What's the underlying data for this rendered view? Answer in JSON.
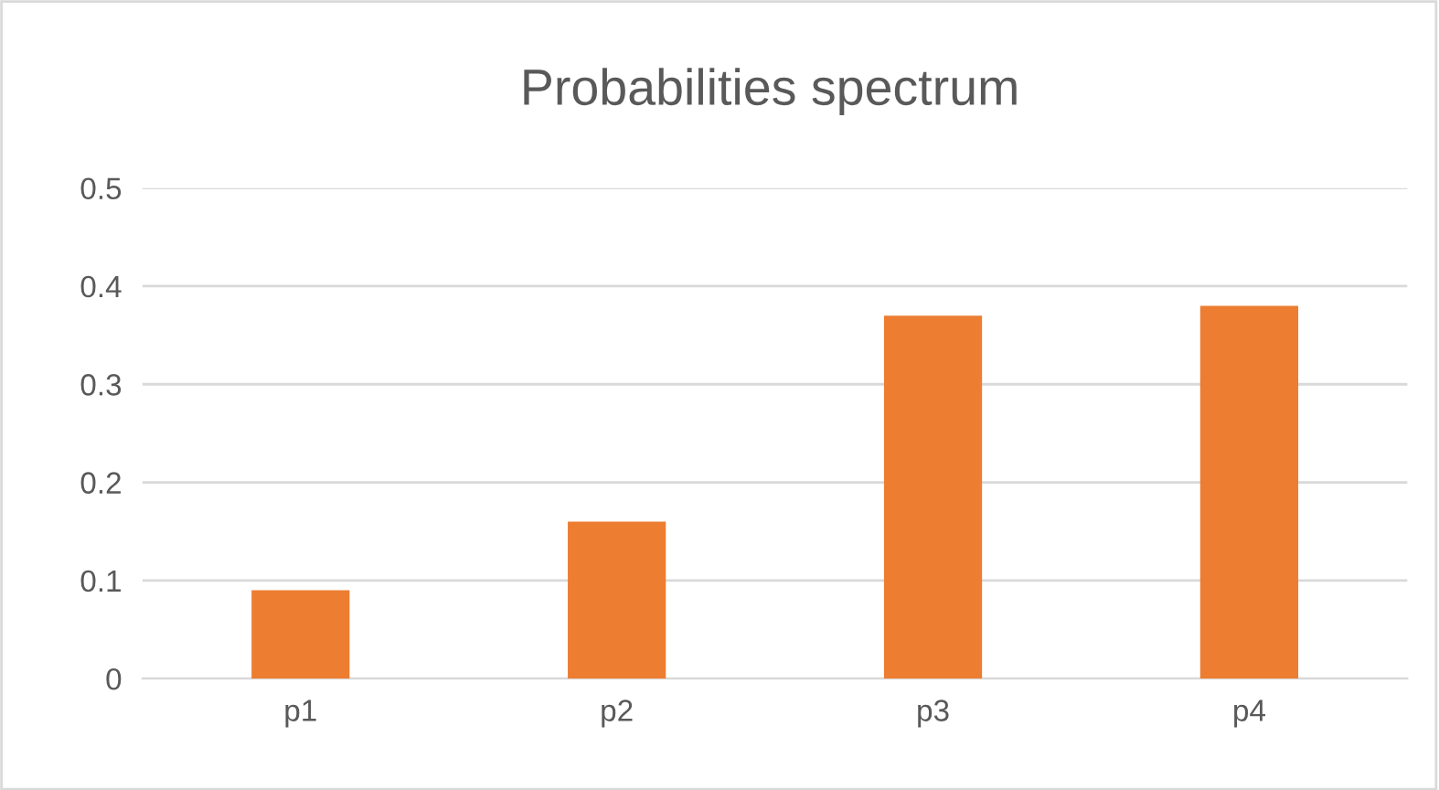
{
  "chart_data": {
    "type": "bar",
    "title": "Probabilities spectrum",
    "categories": [
      "p1",
      "p2",
      "p3",
      "p4"
    ],
    "values": [
      0.09,
      0.16,
      0.37,
      0.38
    ],
    "color": "#ed7d31",
    "ylim": [
      0,
      0.5
    ],
    "yticks": [
      0,
      0.1,
      0.2,
      0.3,
      0.4,
      0.5
    ],
    "grid": "y",
    "legend": false
  }
}
